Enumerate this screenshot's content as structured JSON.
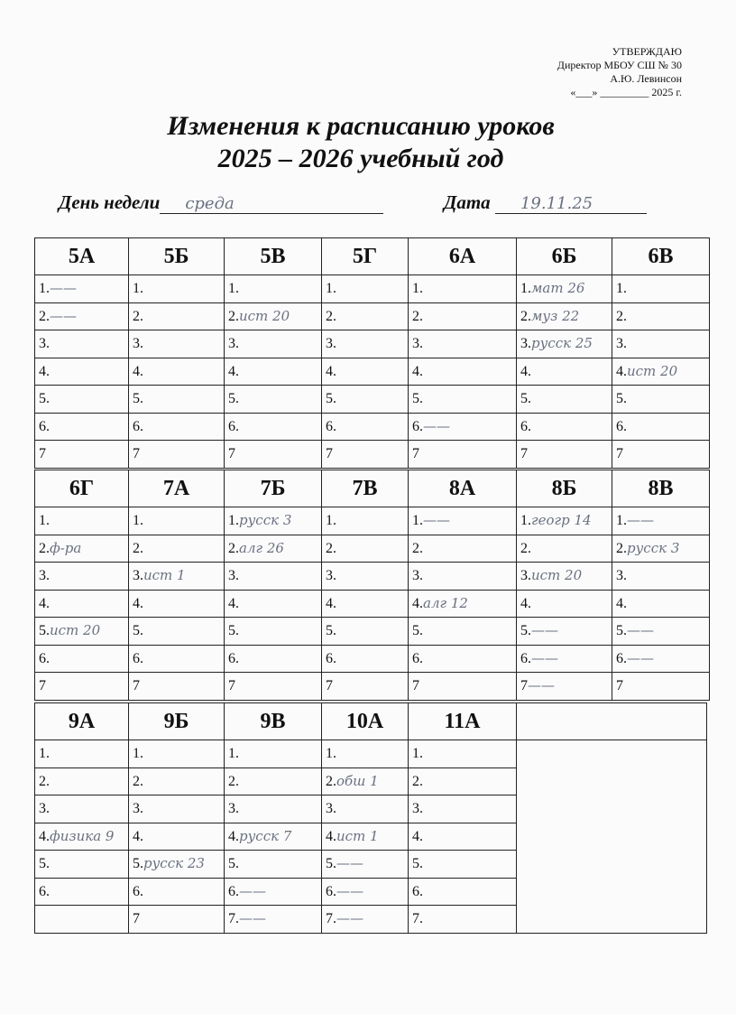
{
  "approval": {
    "line1": "УТВЕРЖДАЮ",
    "line2": "Директор  МБОУ СШ № 30",
    "line3": "А.Ю. Левинсон",
    "line4": "«___»    _________ 2025 г."
  },
  "title": {
    "line1": "Изменения к расписанию уроков",
    "line2": "2025 – 2026 учебный год"
  },
  "day": {
    "label": "День недели",
    "value": "среда"
  },
  "date": {
    "label": "Дата",
    "value": "19.11.25"
  },
  "blocks": [
    {
      "classes": [
        {
          "name": "5А",
          "rows": [
            "1.",
            "2.",
            "3.",
            "4.",
            "5.",
            "6.",
            "7"
          ],
          "notes": [
            "——",
            "——",
            "",
            "",
            "",
            "",
            ""
          ]
        },
        {
          "name": "5Б",
          "rows": [
            "1.",
            "2.",
            "3.",
            "4.",
            "5.",
            "6.",
            "7"
          ],
          "notes": [
            "",
            "",
            "",
            "",
            "",
            "",
            ""
          ]
        },
        {
          "name": "5В",
          "rows": [
            "1.",
            "2.",
            "3.",
            "4.",
            "5.",
            "6.",
            "7"
          ],
          "notes": [
            "",
            "ист 20",
            "",
            "",
            "",
            "",
            ""
          ]
        },
        {
          "name": "5Г",
          "rows": [
            "1.",
            "2.",
            "3.",
            "4.",
            "5.",
            "6.",
            "7"
          ],
          "notes": [
            "",
            "",
            "",
            "",
            "",
            "",
            ""
          ]
        },
        {
          "name": "6А",
          "rows": [
            "1.",
            "2.",
            "3.",
            "4.",
            "5.",
            "6.",
            "7"
          ],
          "notes": [
            "",
            "",
            "",
            "",
            "",
            "——",
            ""
          ]
        },
        {
          "name": "6Б",
          "rows": [
            "1.",
            "2.",
            "3.",
            "4.",
            "5.",
            "6.",
            "7"
          ],
          "notes": [
            "мат 26",
            "муз 22",
            "русск 25",
            "",
            "",
            "",
            ""
          ]
        },
        {
          "name": "6В",
          "rows": [
            "1.",
            "2.",
            "3.",
            "4.",
            "5.",
            "6.",
            "7"
          ],
          "notes": [
            "",
            "",
            "",
            "ист 20",
            "",
            "",
            ""
          ]
        }
      ]
    },
    {
      "classes": [
        {
          "name": "6Г",
          "rows": [
            "1.",
            "2.",
            "3.",
            "4.",
            "5.",
            "6.",
            "7"
          ],
          "notes": [
            "",
            "ф-ра",
            "",
            "",
            "ист 20",
            "",
            ""
          ]
        },
        {
          "name": "7А",
          "rows": [
            "1.",
            "2.",
            "3.",
            "4.",
            "5.",
            "6.",
            "7"
          ],
          "notes": [
            "",
            "",
            "ист 1",
            "",
            "",
            "",
            ""
          ]
        },
        {
          "name": "7Б",
          "rows": [
            "1.",
            "2.",
            "3.",
            "4.",
            "5.",
            "6.",
            "7"
          ],
          "notes": [
            "русск 3",
            "алг 26",
            "",
            "",
            "",
            "",
            ""
          ]
        },
        {
          "name": "7В",
          "rows": [
            "1.",
            "2.",
            "3.",
            "4.",
            "5.",
            "6.",
            "7"
          ],
          "notes": [
            "",
            "",
            "",
            "",
            "",
            "",
            ""
          ]
        },
        {
          "name": "8А",
          "rows": [
            "1.",
            "2.",
            "3.",
            "4.",
            "5.",
            "6.",
            "7"
          ],
          "notes": [
            "——",
            "",
            "",
            "алг 12",
            "",
            "",
            ""
          ]
        },
        {
          "name": "8Б",
          "rows": [
            "1.",
            "2.",
            "3.",
            "4.",
            "5.",
            "6.",
            "7"
          ],
          "notes": [
            "геогр 14",
            "",
            "ист 20",
            "",
            "——",
            "——",
            "——"
          ]
        },
        {
          "name": "8В",
          "rows": [
            "1.",
            "2.",
            "3.",
            "4.",
            "5.",
            "6.",
            "7"
          ],
          "notes": [
            "——",
            "русск 3",
            "",
            "",
            "——",
            "——",
            ""
          ]
        }
      ]
    },
    {
      "classes": [
        {
          "name": "9А",
          "rows": [
            "1.",
            "2.",
            "3.",
            "4.",
            "5.",
            "6.",
            ""
          ],
          "notes": [
            "",
            "",
            "",
            "физика 9",
            "",
            "",
            ""
          ]
        },
        {
          "name": "9Б",
          "rows": [
            "1.",
            "2.",
            "3.",
            "4.",
            "5.",
            "6.",
            "7"
          ],
          "notes": [
            "",
            "",
            "",
            "",
            "русск 23",
            "",
            ""
          ]
        },
        {
          "name": "9В",
          "rows": [
            "1.",
            "2.",
            "3.",
            "4.",
            "5.",
            "6.",
            "7."
          ],
          "notes": [
            "",
            "",
            "",
            "русск 7",
            "",
            "——",
            "——"
          ]
        },
        {
          "name": "10А",
          "rows": [
            "1.",
            "2.",
            "3.",
            "4.",
            "5.",
            "6.",
            "7."
          ],
          "notes": [
            "",
            "обш 1",
            "",
            "ист 1",
            "——",
            "——",
            "——"
          ]
        },
        {
          "name": "11А",
          "rows": [
            "1.",
            "2.",
            "3.",
            "4.",
            "5.",
            "6.",
            "7."
          ],
          "notes": [
            "",
            "",
            "",
            "",
            "",
            "",
            ""
          ]
        }
      ]
    }
  ]
}
